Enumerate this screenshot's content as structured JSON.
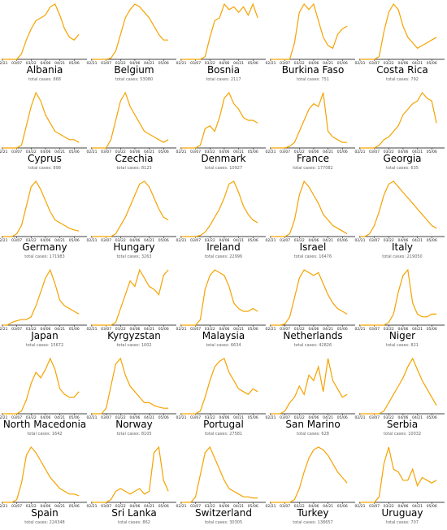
{
  "chart_data": {
    "type": "line",
    "color": "#f5a300",
    "ylim": [
      0,
      100
    ],
    "categories": [
      "02/21",
      null,
      null,
      "03/07",
      null,
      null,
      "03/22",
      null,
      null,
      "04/06",
      null,
      null,
      "04/21",
      null,
      null,
      "05/06",
      null
    ],
    "panels": [
      {
        "title": "Albania",
        "subtitle": "total cases: 868",
        "values": [
          0,
          0,
          0,
          0,
          10,
          35,
          55,
          70,
          75,
          80,
          95,
          100,
          80,
          55,
          40,
          35,
          45
        ]
      },
      {
        "title": "Belgium",
        "subtitle": "total cases: 53080",
        "values": [
          0,
          0,
          0,
          0,
          2,
          15,
          45,
          75,
          90,
          100,
          95,
          85,
          75,
          60,
          45,
          35,
          35
        ]
      },
      {
        "title": "Bosnia",
        "subtitle": "total cases: 2117",
        "values": [
          0,
          0,
          0,
          0,
          0,
          5,
          40,
          70,
          75,
          100,
          90,
          95,
          85,
          95,
          80,
          100,
          75
        ]
      },
      {
        "title": "Burkina Faso",
        "subtitle": "total cases: 751",
        "values": [
          0,
          0,
          0,
          0,
          0,
          30,
          85,
          100,
          90,
          100,
          70,
          40,
          25,
          20,
          45,
          55,
          60
        ]
      },
      {
        "title": "Costa Rica",
        "subtitle": "total cases: 792",
        "values": [
          0,
          0,
          0,
          0,
          5,
          50,
          85,
          100,
          90,
          60,
          40,
          30,
          20,
          25,
          30,
          35,
          40
        ]
      },
      {
        "title": "Cyprus",
        "subtitle": "total cases: 898",
        "values": [
          0,
          0,
          0,
          0,
          5,
          40,
          75,
          100,
          85,
          60,
          45,
          30,
          25,
          20,
          15,
          15,
          10
        ]
      },
      {
        "title": "Czechia",
        "subtitle": "total cases: 8123",
        "values": [
          0,
          0,
          0,
          0,
          15,
          50,
          85,
          100,
          75,
          60,
          45,
          30,
          25,
          20,
          15,
          10,
          15
        ]
      },
      {
        "title": "Denmark",
        "subtitle": "total cases: 10927",
        "values": [
          0,
          0,
          0,
          0,
          5,
          35,
          40,
          30,
          55,
          90,
          100,
          80,
          70,
          55,
          50,
          50,
          45
        ]
      },
      {
        "title": "France",
        "subtitle": "total cases: 177082",
        "values": [
          0,
          0,
          0,
          0,
          3,
          10,
          30,
          50,
          70,
          80,
          75,
          100,
          30,
          20,
          15,
          10,
          10
        ]
      },
      {
        "title": "Georgia",
        "subtitle": "total cases: 635",
        "values": [
          0,
          0,
          0,
          0,
          5,
          15,
          20,
          30,
          40,
          60,
          70,
          80,
          85,
          100,
          90,
          85,
          45
        ]
      },
      {
        "title": "Germany",
        "subtitle": "total cases: 171983",
        "values": [
          0,
          0,
          0,
          5,
          20,
          55,
          90,
          100,
          85,
          65,
          45,
          30,
          25,
          20,
          15,
          12,
          10
        ]
      },
      {
        "title": "Hungary",
        "subtitle": "total cases: 3263",
        "values": [
          0,
          0,
          0,
          0,
          0,
          5,
          20,
          35,
          55,
          75,
          95,
          100,
          90,
          70,
          50,
          35,
          30
        ]
      },
      {
        "title": "Ireland",
        "subtitle": "total cases: 22996",
        "values": [
          0,
          0,
          0,
          0,
          2,
          8,
          20,
          35,
          50,
          70,
          95,
          100,
          80,
          55,
          40,
          30,
          25
        ]
      },
      {
        "title": "Israel",
        "subtitle": "total cases: 16476",
        "values": [
          0,
          0,
          0,
          0,
          5,
          30,
          75,
          100,
          90,
          75,
          60,
          40,
          30,
          20,
          15,
          10,
          5
        ]
      },
      {
        "title": "Italy",
        "subtitle": "total cases: 219050",
        "values": [
          0,
          0,
          5,
          20,
          45,
          75,
          95,
          100,
          90,
          80,
          70,
          60,
          50,
          40,
          30,
          20,
          15
        ]
      },
      {
        "title": "Japan",
        "subtitle": "total cases: 15672",
        "values": [
          0,
          0,
          5,
          8,
          10,
          10,
          15,
          35,
          60,
          85,
          100,
          75,
          45,
          35,
          30,
          25,
          20
        ]
      },
      {
        "title": "Kyrgyzstan",
        "subtitle": "total cases: 1002",
        "values": [
          0,
          0,
          0,
          0,
          0,
          5,
          30,
          55,
          80,
          70,
          100,
          85,
          70,
          65,
          55,
          90,
          100
        ]
      },
      {
        "title": "Malaysia",
        "subtitle": "total cases: 6634",
        "values": [
          0,
          0,
          0,
          0,
          10,
          65,
          90,
          100,
          95,
          90,
          70,
          40,
          30,
          25,
          25,
          30,
          25
        ]
      },
      {
        "title": "Netherlands",
        "subtitle": "total cases: 42826",
        "values": [
          0,
          0,
          0,
          2,
          15,
          50,
          85,
          100,
          95,
          90,
          95,
          75,
          55,
          40,
          30,
          25,
          20
        ]
      },
      {
        "title": "Niger",
        "subtitle": "total cases: 821",
        "values": [
          0,
          0,
          0,
          0,
          0,
          0,
          5,
          20,
          60,
          90,
          100,
          40,
          20,
          15,
          15,
          20,
          20
        ]
      },
      {
        "title": "North Macedonia",
        "subtitle": "total cases: 1642",
        "values": [
          0,
          0,
          0,
          0,
          5,
          25,
          55,
          75,
          65,
          80,
          100,
          80,
          45,
          35,
          30,
          30,
          40
        ]
      },
      {
        "title": "Norway",
        "subtitle": "total cases: 8105",
        "values": [
          0,
          0,
          0,
          10,
          50,
          90,
          100,
          70,
          50,
          40,
          30,
          20,
          20,
          15,
          12,
          10,
          10
        ]
      },
      {
        "title": "Portugal",
        "subtitle": "total cases: 27581",
        "values": [
          0,
          0,
          0,
          0,
          5,
          30,
          60,
          85,
          95,
          100,
          75,
          60,
          45,
          40,
          35,
          45,
          40
        ]
      },
      {
        "title": "San Marino",
        "subtitle": "total cases: 628",
        "values": [
          0,
          0,
          0,
          5,
          20,
          30,
          50,
          35,
          70,
          60,
          85,
          40,
          100,
          60,
          45,
          30,
          35
        ]
      },
      {
        "title": "Serbia",
        "subtitle": "total cases: 10032",
        "values": [
          0,
          0,
          0,
          0,
          0,
          5,
          20,
          35,
          50,
          65,
          85,
          100,
          80,
          60,
          45,
          30,
          15
        ]
      },
      {
        "title": "Spain",
        "subtitle": "total cases: 224348",
        "values": [
          0,
          0,
          0,
          5,
          35,
          85,
          100,
          90,
          75,
          60,
          45,
          35,
          25,
          20,
          15,
          15,
          12
        ]
      },
      {
        "title": "Sri Lanka",
        "subtitle": "total cases: 862",
        "values": [
          0,
          0,
          0,
          0,
          5,
          20,
          25,
          20,
          15,
          20,
          25,
          15,
          20,
          90,
          100,
          40,
          20
        ]
      },
      {
        "title": "Switzerland",
        "subtitle": "total cases: 30305",
        "values": [
          0,
          0,
          0,
          10,
          50,
          90,
          100,
          80,
          60,
          40,
          25,
          20,
          15,
          10,
          10,
          8,
          8
        ]
      },
      {
        "title": "Turkey",
        "subtitle": "total cases: 138657",
        "values": [
          0,
          0,
          0,
          0,
          0,
          5,
          25,
          55,
          80,
          95,
          100,
          95,
          85,
          70,
          55,
          45,
          35
        ]
      },
      {
        "title": "Uruguay",
        "subtitle": "total cases: 707",
        "values": [
          0,
          0,
          0,
          0,
          10,
          70,
          100,
          60,
          55,
          40,
          40,
          60,
          30,
          45,
          40,
          35,
          40
        ]
      }
    ]
  }
}
